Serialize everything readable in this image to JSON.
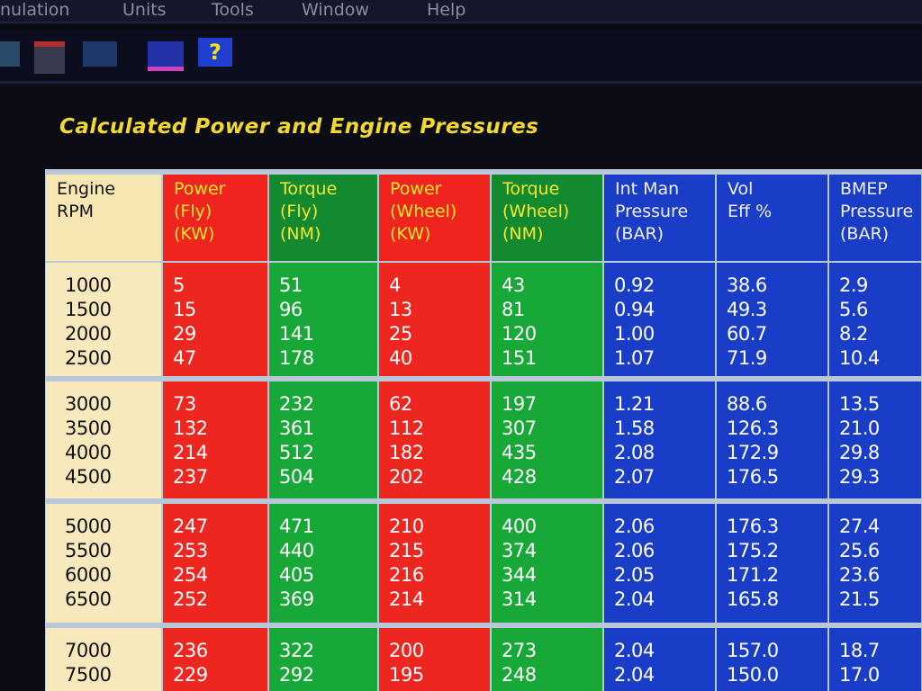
{
  "menu": [
    "nulation",
    "Units",
    "Tools",
    "Window",
    "Help"
  ],
  "toolbar": [
    "?"
  ],
  "title": "Calculated Power and Engine Pressures",
  "table": {
    "headers": [
      [
        "Engine",
        "RPM"
      ],
      [
        "Power",
        "(Fly)",
        "(KW)"
      ],
      [
        "Torque",
        "(Fly)",
        "(NM)"
      ],
      [
        "Power",
        "(Wheel)",
        "(KW)"
      ],
      [
        "Torque",
        "(Wheel)",
        "(NM)"
      ],
      [
        "Int Man",
        "Pressure",
        "(BAR)"
      ],
      [
        "Vol",
        "Eff %"
      ],
      [
        "BMEP",
        "Pressure",
        "(BAR)"
      ]
    ],
    "rows": [
      [
        "1000",
        "5",
        "51",
        "4",
        "43",
        "0.92",
        "38.6",
        "2.9"
      ],
      [
        "1500",
        "15",
        "96",
        "13",
        "81",
        "0.94",
        "49.3",
        "5.6"
      ],
      [
        "2000",
        "29",
        "141",
        "25",
        "120",
        "1.00",
        "60.7",
        "8.2"
      ],
      [
        "2500",
        "47",
        "178",
        "40",
        "151",
        "1.07",
        "71.9",
        "10.4"
      ],
      [
        "3000",
        "73",
        "232",
        "62",
        "197",
        "1.21",
        "88.6",
        "13.5"
      ],
      [
        "3500",
        "132",
        "361",
        "112",
        "307",
        "1.58",
        "126.3",
        "21.0"
      ],
      [
        "4000",
        "214",
        "512",
        "182",
        "435",
        "2.08",
        "172.9",
        "29.8"
      ],
      [
        "4500",
        "237",
        "504",
        "202",
        "428",
        "2.07",
        "176.5",
        "29.3"
      ],
      [
        "5000",
        "247",
        "471",
        "210",
        "400",
        "2.06",
        "176.3",
        "27.4"
      ],
      [
        "5500",
        "253",
        "440",
        "215",
        "374",
        "2.06",
        "175.2",
        "25.6"
      ],
      [
        "6000",
        "254",
        "405",
        "216",
        "344",
        "2.05",
        "171.2",
        "23.6"
      ],
      [
        "6500",
        "252",
        "369",
        "214",
        "314",
        "2.04",
        "165.8",
        "21.5"
      ],
      [
        "7000",
        "236",
        "322",
        "200",
        "273",
        "2.04",
        "157.0",
        "18.7"
      ],
      [
        "7500",
        "229",
        "292",
        "195",
        "248",
        "2.04",
        "150.0",
        "17.0"
      ]
    ]
  }
}
